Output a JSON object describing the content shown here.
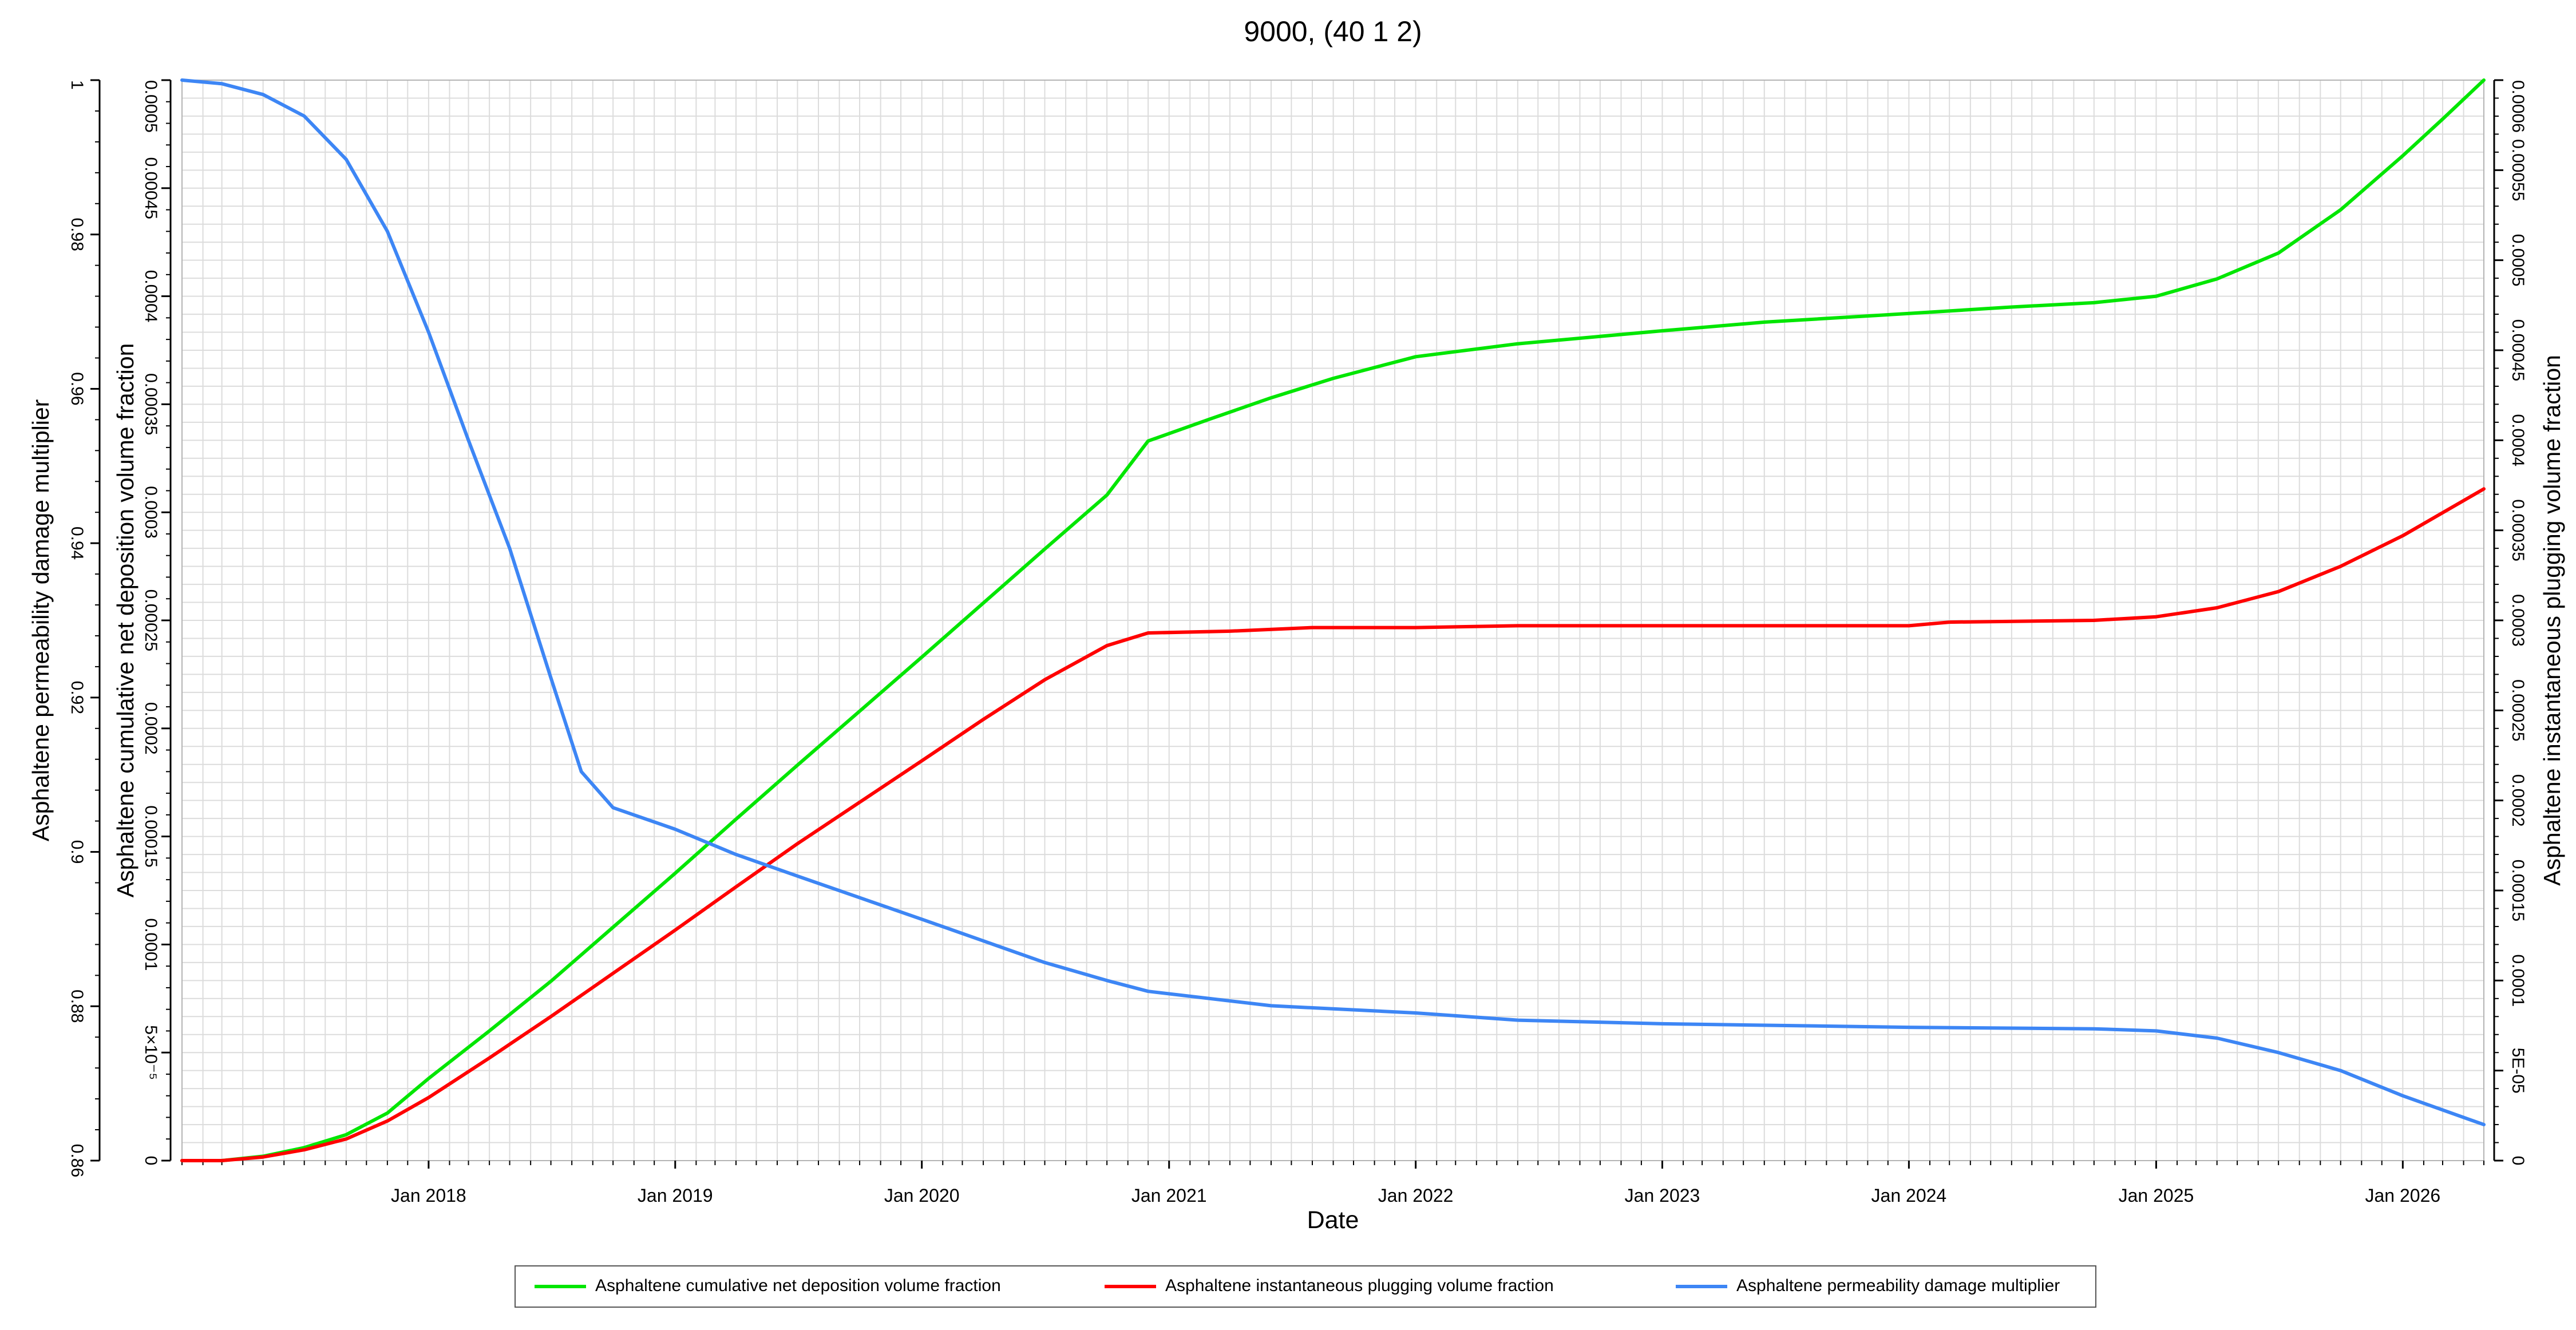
{
  "chart_data": {
    "type": "line",
    "title": "9000, (40 1 2)",
    "xlabel": "Date",
    "xlim": [
      "2017-01-01",
      "2026-05-01"
    ],
    "x_ticks": [
      "Jan 2018",
      "Jan 2019",
      "Jan 2020",
      "Jan 2021",
      "Jan 2022",
      "Jan 2023",
      "Jan 2024",
      "Jan 2025",
      "Jan 2026"
    ],
    "y_axes": [
      {
        "id": "perm",
        "label": "Asphaltene permeability damage multiplier",
        "range": [
          0.85,
          1.0
        ],
        "ticks": [
          "0.86",
          "0.88",
          "0.9",
          "0.92",
          "0.94",
          "0.96",
          "0.98",
          "1"
        ]
      },
      {
        "id": "cumdep",
        "label": "Asphaltene cumulative net deposition volume fraction",
        "range": [
          0,
          0.0005
        ],
        "ticks": [
          "0",
          "5×10⁻⁵",
          "0.0001",
          "0.00015",
          "0.0002",
          "0.00025",
          "0.0003",
          "0.00035",
          "0.0004",
          "0.00045",
          "0.0005"
        ]
      },
      {
        "id": "plug",
        "label": "Asphaltene instantaneous plugging volume fraction",
        "range": [
          0,
          0.0006
        ],
        "ticks": [
          "0",
          "5E-05",
          "0.0001",
          "0.00015",
          "0.0002",
          "0.00025",
          "0.0003",
          "0.00035",
          "0.0004",
          "0.00045",
          "0.0005",
          "0.00055",
          "0.0006"
        ]
      }
    ],
    "grid": true,
    "legend_position": "bottom",
    "series": [
      {
        "name": "Asphaltene cumulative net deposition volume fraction",
        "axis": "cumdep",
        "color": "#00e600",
        "x": [
          "2017-01-01",
          "2017-03-01",
          "2017-05-01",
          "2017-07-01",
          "2017-09-01",
          "2017-11-01",
          "2018-01-01",
          "2018-04-01",
          "2018-07-01",
          "2018-10-01",
          "2019-01-01",
          "2019-04-01",
          "2019-07-01",
          "2019-10-01",
          "2020-01-01",
          "2020-04-01",
          "2020-07-01",
          "2020-10-01",
          "2020-12-01",
          "2021-03-01",
          "2021-06-01",
          "2021-09-01",
          "2022-01-01",
          "2022-06-01",
          "2023-01-01",
          "2023-06-01",
          "2024-01-01",
          "2024-06-01",
          "2024-10-01",
          "2025-01-01",
          "2025-04-01",
          "2025-07-01",
          "2025-10-01",
          "2026-01-01",
          "2026-03-01",
          "2026-05-01"
        ],
        "values": [
          0,
          0,
          2e-06,
          6e-06,
          1.2e-05,
          2.2e-05,
          3.8e-05,
          6e-05,
          8.3e-05,
          0.000108,
          0.000133,
          0.000158,
          0.000183,
          0.000208,
          0.000233,
          0.000258,
          0.000283,
          0.000308,
          0.000333,
          0.000343,
          0.000353,
          0.000362,
          0.000372,
          0.000378,
          0.000384,
          0.000388,
          0.000392,
          0.000395,
          0.000397,
          0.0004,
          0.000408,
          0.00042,
          0.00044,
          0.000465,
          0.000482,
          0.0005
        ]
      },
      {
        "name": "Asphaltene instantaneous plugging volume fraction",
        "axis": "plug",
        "color": "#ff0000",
        "x": [
          "2017-01-01",
          "2017-03-01",
          "2017-05-01",
          "2017-07-01",
          "2017-09-01",
          "2017-11-01",
          "2018-01-01",
          "2018-04-01",
          "2018-07-01",
          "2018-10-01",
          "2019-01-01",
          "2019-04-01",
          "2019-07-01",
          "2019-10-01",
          "2020-01-01",
          "2020-04-01",
          "2020-07-01",
          "2020-10-01",
          "2020-12-01",
          "2021-04-01",
          "2021-08-01",
          "2022-01-01",
          "2022-06-01",
          "2023-01-01",
          "2024-01-01",
          "2024-03-01",
          "2024-10-01",
          "2025-01-01",
          "2025-04-01",
          "2025-07-01",
          "2025-10-01",
          "2026-01-01",
          "2026-05-01"
        ],
        "values": [
          0,
          0,
          2e-06,
          6e-06,
          1.2e-05,
          2.2e-05,
          3.5e-05,
          5.7e-05,
          8e-05,
          0.000104,
          0.000128,
          0.000152,
          0.000176,
          0.000199,
          0.000222,
          0.000245,
          0.000267,
          0.000286,
          0.000293,
          0.000294,
          0.000296,
          0.000296,
          0.000297,
          0.000297,
          0.000297,
          0.000299,
          0.0003,
          0.000302,
          0.000307,
          0.000316,
          0.00033,
          0.000347,
          0.000373
        ]
      },
      {
        "name": "Asphaltene permeability damage multiplier",
        "axis": "perm",
        "color": "#3d86f5",
        "x": [
          "2017-01-01",
          "2017-03-01",
          "2017-05-01",
          "2017-07-01",
          "2017-09-01",
          "2017-11-01",
          "2018-01-01",
          "2018-03-01",
          "2018-05-01",
          "2018-07-01",
          "2018-08-15",
          "2018-10-01",
          "2019-01-01",
          "2019-04-01",
          "2019-07-01",
          "2019-10-01",
          "2020-01-01",
          "2020-04-01",
          "2020-07-01",
          "2020-10-01",
          "2020-12-01",
          "2021-06-01",
          "2022-01-01",
          "2022-06-01",
          "2023-01-01",
          "2024-01-01",
          "2024-10-01",
          "2025-01-01",
          "2025-04-01",
          "2025-07-01",
          "2025-10-01",
          "2026-01-01",
          "2026-05-01"
        ],
        "values": [
          1.0,
          0.9995,
          0.998,
          0.995,
          0.989,
          0.979,
          0.965,
          0.95,
          0.935,
          0.917,
          0.904,
          0.899,
          0.896,
          0.8925,
          0.8895,
          0.8865,
          0.8835,
          0.8805,
          0.8775,
          0.875,
          0.8735,
          0.8715,
          0.8705,
          0.8695,
          0.869,
          0.8685,
          0.8683,
          0.868,
          0.867,
          0.865,
          0.8625,
          0.859,
          0.855
        ]
      }
    ]
  }
}
